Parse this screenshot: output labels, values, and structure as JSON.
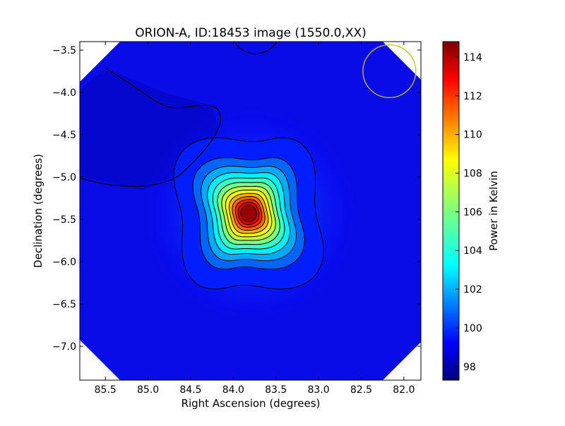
{
  "chart_data": {
    "type": "heatmap",
    "title": "ORION-A, ID:18453 image (1550.0,XX)",
    "xlabel": "Right Ascension (degrees)",
    "ylabel": "Declination (degrees)",
    "xlim": [
      85.8,
      81.8
    ],
    "ylim": [
      -7.4,
      -3.4
    ],
    "x_ticks": [
      85.5,
      85.0,
      84.5,
      84.0,
      83.5,
      83.0,
      82.5,
      82.0
    ],
    "x_tick_labels": [
      "85.5",
      "85.0",
      "84.5",
      "84.0",
      "83.5",
      "83.0",
      "82.5",
      "82.0"
    ],
    "y_ticks": [
      -3.5,
      -4.0,
      -4.5,
      -5.0,
      -5.5,
      -6.0,
      -6.5,
      -7.0
    ],
    "y_tick_labels": [
      "−3.5",
      "−4.0",
      "−4.5",
      "−5.0",
      "−5.5",
      "−6.0",
      "−6.5",
      "−7.0"
    ],
    "colorbar": {
      "label": "Power in Kelvin",
      "colormap": "jet",
      "range": [
        97.3,
        114.8
      ],
      "ticks": [
        98,
        100,
        102,
        104,
        106,
        108,
        110,
        112,
        114
      ],
      "tick_labels": [
        "98",
        "100",
        "102",
        "104",
        "106",
        "108",
        "110",
        "112",
        "114"
      ]
    },
    "source_peak": {
      "ra": 83.82,
      "dec": -5.43,
      "value": 114.8
    },
    "background_level": 99.0,
    "beam_circle": {
      "ra": 82.17,
      "dec": -3.75,
      "radius_deg": 0.31,
      "color": "#c8c800"
    },
    "grid": false,
    "colors": {
      "text": "#000000",
      "masked": "#ffffff"
    }
  }
}
